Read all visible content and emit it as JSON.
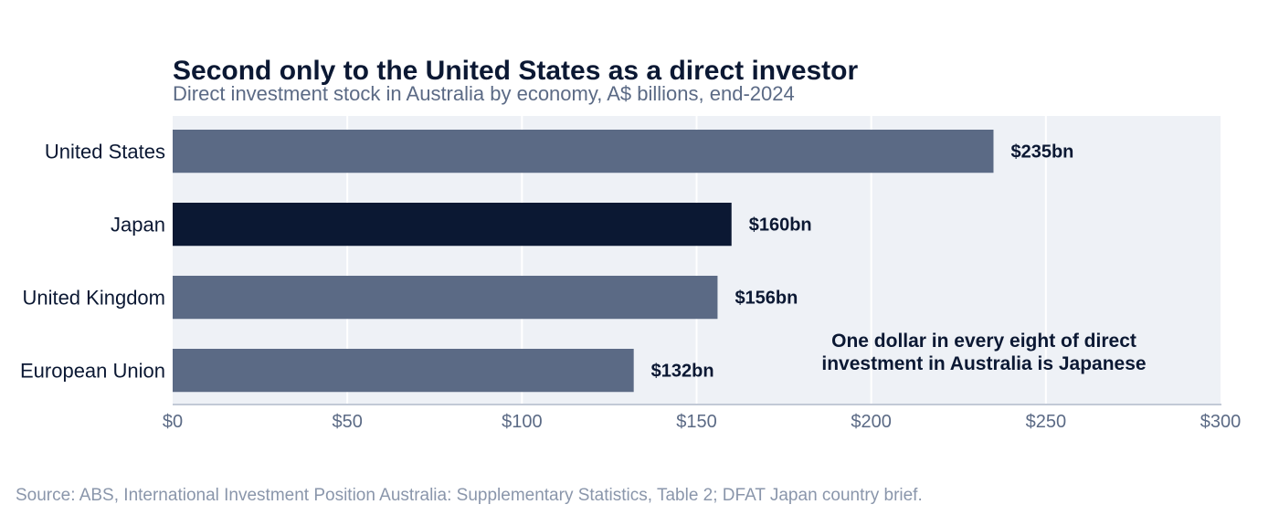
{
  "chart_data": {
    "type": "bar",
    "orientation": "horizontal",
    "title": "Second only to the United States as a direct investor",
    "subtitle": "Direct investment stock in Australia by economy, A$ billions, end-2024",
    "categories": [
      "United States",
      "Japan",
      "United Kingdom",
      "European Union"
    ],
    "values": [
      235,
      160,
      156,
      132
    ],
    "value_labels": [
      "$235bn",
      "$160bn",
      "$156bn",
      "$132bn"
    ],
    "highlight": "Japan",
    "xlim": [
      0,
      300
    ],
    "x_ticks": [
      0,
      50,
      100,
      150,
      200,
      250,
      300
    ],
    "x_tick_labels": [
      "$0",
      "$50",
      "$100",
      "$150",
      "$200",
      "$250",
      "$300"
    ],
    "grid": true,
    "annotation": [
      "One dollar in every eight of direct",
      "investment in Australia is Japanese"
    ],
    "source": "Source: ABS, International Investment Position Australia: Supplementary Statistics, Table 2; DFAT Japan country brief."
  },
  "colors": {
    "bar_default": "#5b6a85",
    "bar_highlight": "#0b1833",
    "plot_background": "#eef1f6",
    "gridline": "#ffffff",
    "axis_line": "#c2c9d6"
  }
}
